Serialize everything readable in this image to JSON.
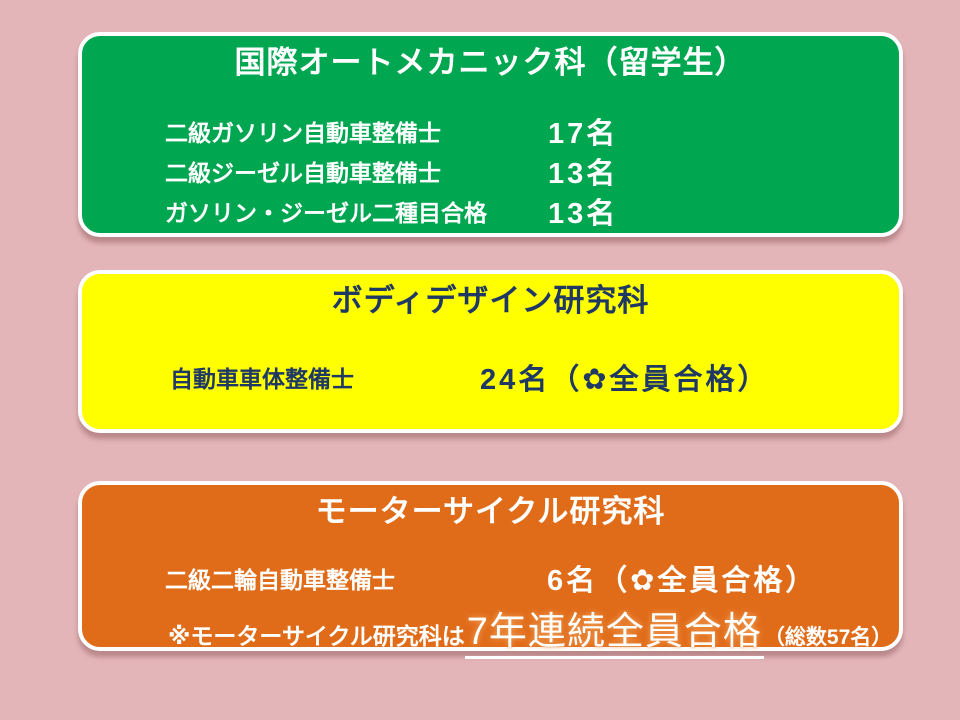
{
  "page": {
    "background_color": "#E3B5B8",
    "panel_border_color": "#FFFFFF"
  },
  "panels": [
    {
      "id": "international-auto-mechanic",
      "title": "国際オートメカニック科（留学生）",
      "bg": "#00A650",
      "text_color": "#FFFFFF",
      "rows": [
        {
          "label": "二級ガソリン自動車整備士",
          "value": "17名"
        },
        {
          "label": "二級ジーゼル自動車整備士",
          "value": "13名"
        },
        {
          "label": "ガソリン・ジーゼル二種目合格",
          "value": "13名"
        }
      ]
    },
    {
      "id": "body-design",
      "title": "ボディデザイン研究科",
      "bg": "#FFFF00",
      "text_color": "#1F3864",
      "rows": [
        {
          "label": "自動車車体整備士",
          "value": "24名（✿全員合格）"
        }
      ]
    },
    {
      "id": "motorcycle",
      "title": "モーターサイクル研究科",
      "bg": "#E06C1A",
      "text_color": "#FFFFFF",
      "rows": [
        {
          "label": "二級二輪自動車整備士",
          "value": "6名（✿全員合格）"
        }
      ],
      "note": {
        "prefix": "※モーターサイクル研究科は",
        "highlight": "7年連続全員合格",
        "suffix": "（総数57名）"
      }
    }
  ],
  "icons": {
    "flower": "✿"
  }
}
